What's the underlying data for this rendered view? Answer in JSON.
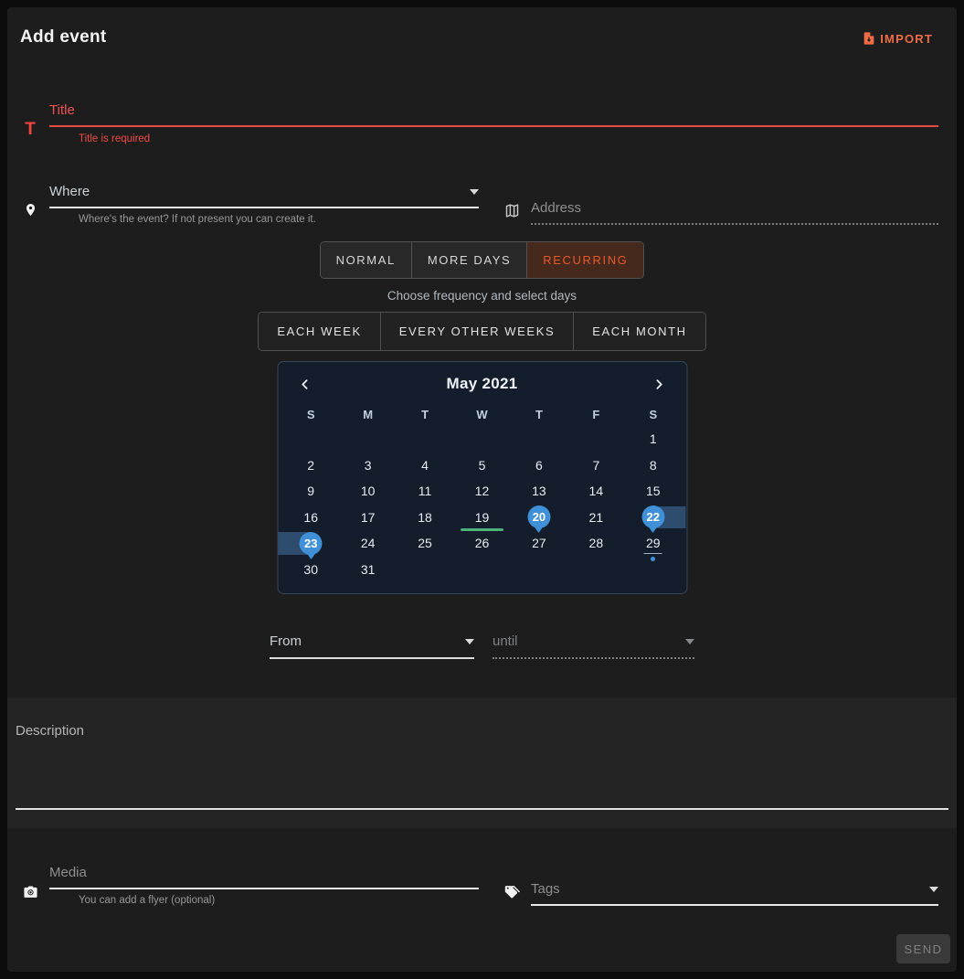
{
  "header": {
    "title": "Add event",
    "import_label": "IMPORT"
  },
  "fields": {
    "title": {
      "icon_label": "T",
      "placeholder": "Title",
      "error": "Title is required"
    },
    "where": {
      "label": "Where",
      "helper": "Where's the event? If not present you can create it."
    },
    "address": {
      "placeholder": "Address"
    },
    "from": {
      "label": "From"
    },
    "until": {
      "placeholder": "until"
    },
    "description": {
      "label": "Description"
    },
    "media": {
      "placeholder": "Media",
      "helper": "You can add a flyer (optional)"
    },
    "tags": {
      "placeholder": "Tags"
    }
  },
  "mode_tabs": {
    "items": [
      {
        "label": "NORMAL",
        "active": false
      },
      {
        "label": "MORE DAYS",
        "active": false
      },
      {
        "label": "RECURRING",
        "active": true
      }
    ]
  },
  "frequency": {
    "hint": "Choose frequency and select days",
    "options": [
      "EACH WEEK",
      "EVERY OTHER WEEKS",
      "EACH MONTH"
    ]
  },
  "calendar": {
    "title": "May 2021",
    "day_headers": [
      "S",
      "M",
      "T",
      "W",
      "T",
      "F",
      "S"
    ],
    "weeks": [
      [
        "",
        "",
        "",
        "",
        "",
        "",
        "1"
      ],
      [
        "2",
        "3",
        "4",
        "5",
        "6",
        "7",
        "8"
      ],
      [
        "9",
        "10",
        "11",
        "12",
        "13",
        "14",
        "15"
      ],
      [
        "16",
        "17",
        "18",
        "19",
        "20",
        "21",
        "22"
      ],
      [
        "23",
        "24",
        "25",
        "26",
        "27",
        "28",
        "29"
      ],
      [
        "30",
        "31",
        "",
        "",
        "",
        "",
        ""
      ]
    ],
    "selected_days": [
      "20",
      "22",
      "23"
    ],
    "range_continues_right": "22",
    "range_continues_left": "23",
    "today": "19",
    "underlined_day": "29",
    "event_dot_day": "29"
  },
  "send": {
    "label": "SEND"
  },
  "colors": {
    "accent_orange": "#e8582a",
    "error_red": "#ef5350",
    "selected_blue": "#4090d8",
    "range_blue": "#2d4c6e",
    "today_green": "#4db377",
    "calendar_bg": "#131d2b",
    "panel_bg": "#1d1d1d"
  }
}
